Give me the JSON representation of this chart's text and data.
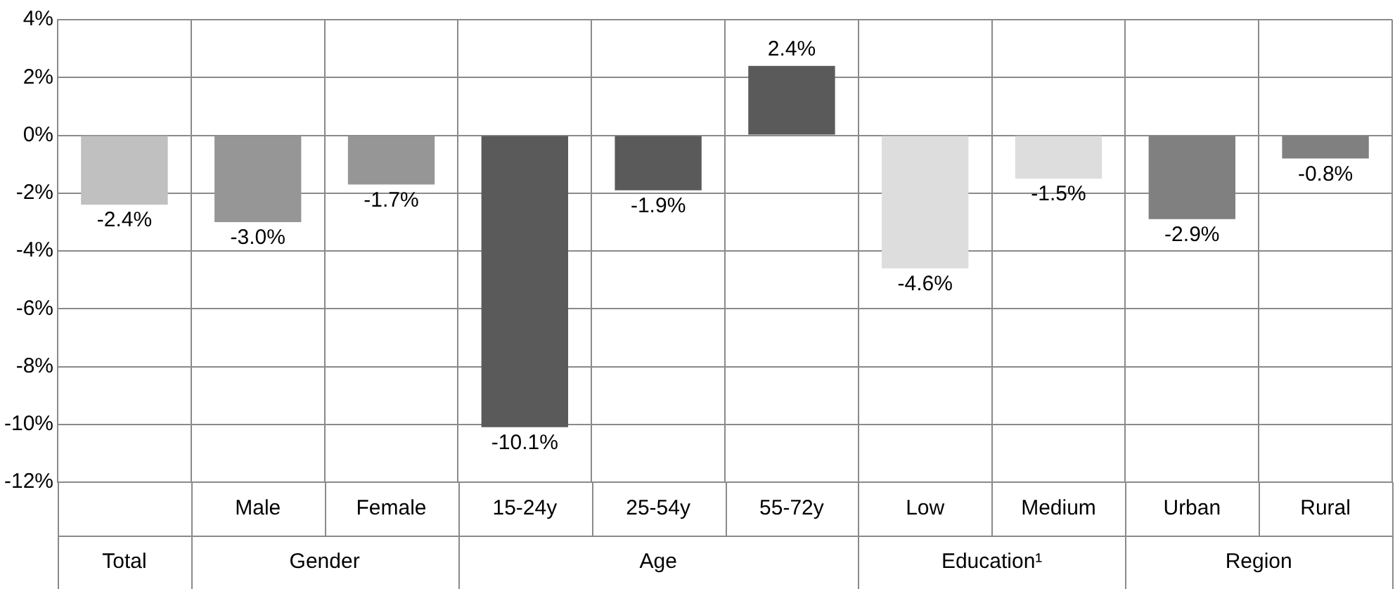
{
  "chart_data": {
    "type": "bar",
    "categories": [
      null,
      "Male",
      "Female",
      "15-24y",
      "25-54y",
      "55-72y",
      "Low",
      "Medium",
      "Urban",
      "Rural"
    ],
    "values": [
      -2.4,
      -3.0,
      -1.7,
      -10.1,
      -1.9,
      2.4,
      -4.6,
      -1.5,
      -2.9,
      -0.8
    ],
    "colors": [
      "#c0c0c0",
      "#969696",
      "#969696",
      "#5a5a5a",
      "#5a5a5a",
      "#5a5a5a",
      "#dddddd",
      "#dddddd",
      "#808080",
      "#808080"
    ],
    "value_labels": [
      "-2.4%",
      "-3.0%",
      "-1.7%",
      "-10.1%",
      "-1.9%",
      "2.4%",
      "-4.6%",
      "-1.5%",
      "-2.9%",
      "-0.8%"
    ],
    "annotations": [
      "Total",
      "Gender",
      "Age",
      "Education¹",
      "Region"
    ],
    "ylim": [
      -12,
      4
    ],
    "yticks": [
      {
        "value": 4,
        "label": "4%"
      },
      {
        "value": 2,
        "label": "2%"
      },
      {
        "value": 0,
        "label": "0%"
      },
      {
        "value": -2,
        "label": "-2%"
      },
      {
        "value": -4,
        "label": "-4%"
      },
      {
        "value": -6,
        "label": "-6%"
      },
      {
        "value": -8,
        "label": "-8%"
      },
      {
        "value": -10,
        "label": "-10%"
      },
      {
        "value": -12,
        "label": "-12%"
      }
    ],
    "grid": true,
    "legend": false
  }
}
